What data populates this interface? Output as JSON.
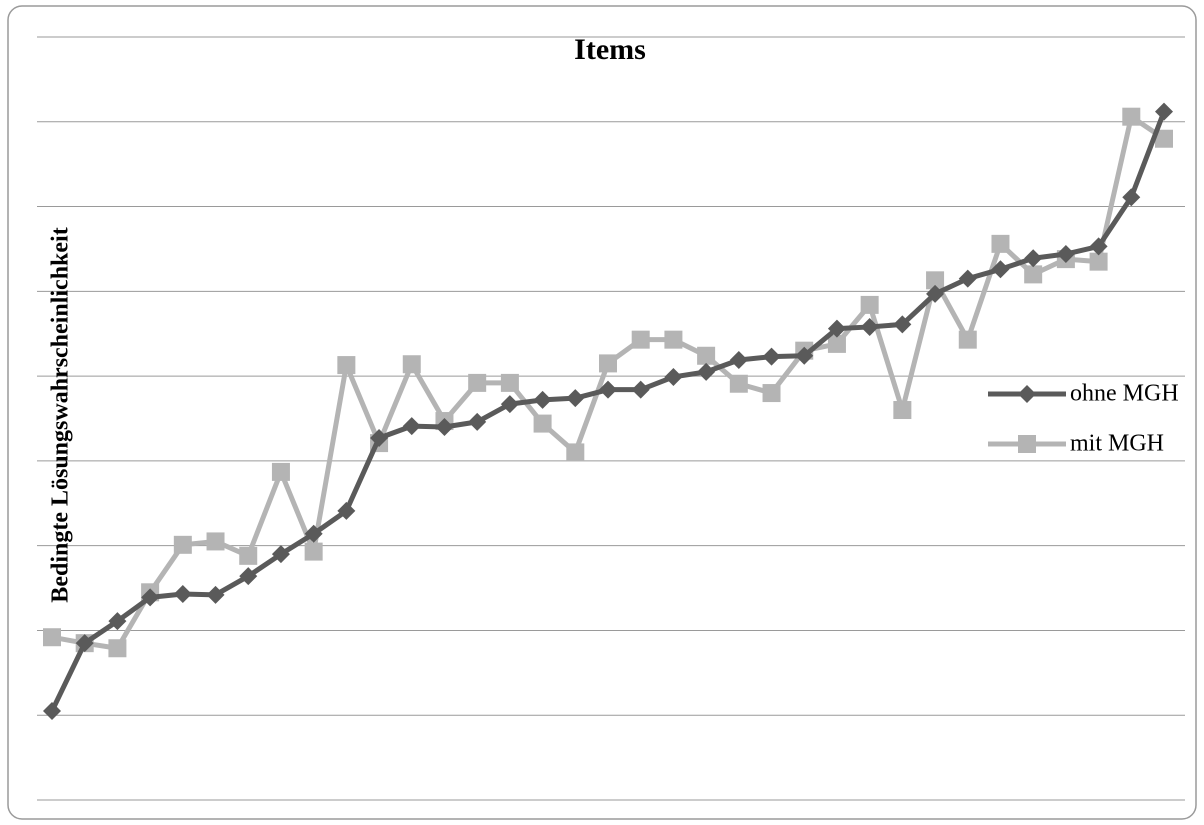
{
  "chart_data": {
    "type": "line",
    "title": "Items",
    "y_label": "Bedingte Lösungswahrscheinlichkeit",
    "categories": [
      null,
      null,
      null,
      null,
      null,
      null,
      null,
      null,
      null,
      null,
      null,
      null,
      null,
      null,
      null,
      null,
      null,
      null,
      null,
      null,
      null,
      null,
      null,
      null,
      null,
      null,
      null,
      null,
      null,
      null,
      null,
      null,
      null,
      null,
      null
    ],
    "series": [
      {
        "name": "ohne MGH",
        "color": "#5a5a5a",
        "marker": "diamond",
        "values": [
          1.05,
          1.85,
          2.11,
          2.39,
          2.43,
          2.42,
          2.64,
          2.9,
          3.14,
          3.41,
          4.27,
          4.41,
          4.4,
          4.46,
          4.67,
          4.72,
          4.74,
          4.84,
          4.84,
          4.99,
          5.05,
          5.19,
          5.23,
          5.24,
          5.56,
          5.58,
          5.61,
          5.97,
          6.15,
          6.26,
          6.39,
          6.44,
          6.53,
          7.11,
          8.12
        ]
      },
      {
        "name": "mit MGH",
        "color": "#b4b4b4",
        "marker": "square",
        "values": [
          1.92,
          1.85,
          1.79,
          2.45,
          3.01,
          3.05,
          2.88,
          3.87,
          2.93,
          5.13,
          4.21,
          5.14,
          4.47,
          4.92,
          4.92,
          4.44,
          4.1,
          5.15,
          5.43,
          5.43,
          5.24,
          4.91,
          4.8,
          5.3,
          5.38,
          5.84,
          4.6,
          6.13,
          5.43,
          6.56,
          6.2,
          6.38,
          6.35,
          8.06,
          7.8
        ]
      }
    ],
    "ylim": [
      0,
      9
    ],
    "yticks": [
      0,
      1,
      2,
      3,
      4,
      5,
      6,
      7,
      8,
      9
    ],
    "grid": true,
    "legend": "right"
  }
}
